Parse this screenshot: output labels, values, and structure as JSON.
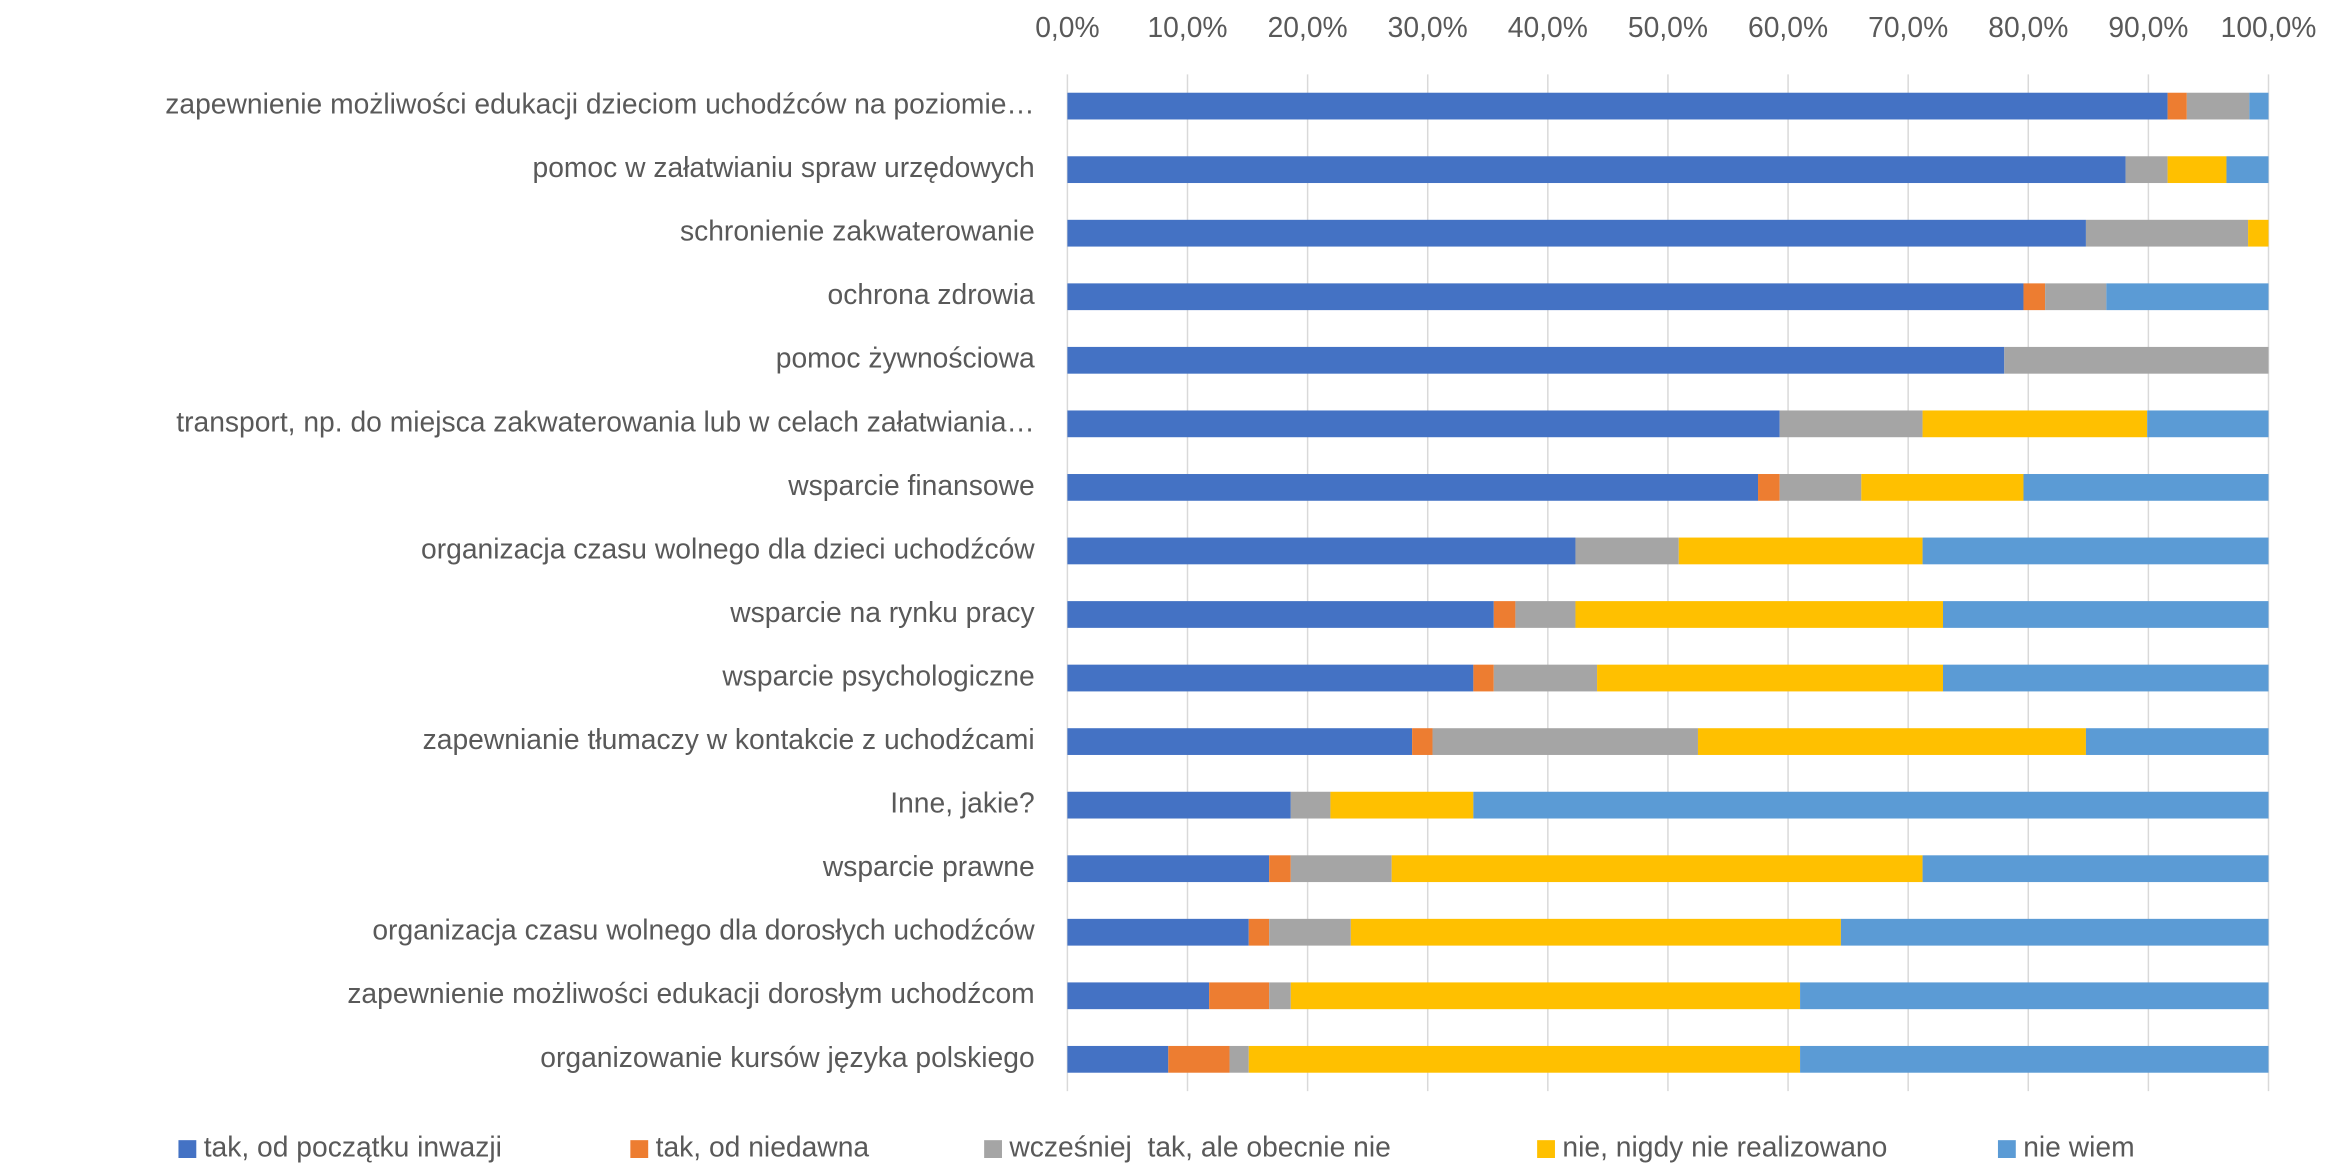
{
  "chart_data": {
    "type": "stacked-bar-horizontal",
    "categories": [
      "zapewnienie możliwości edukacji dzieciom uchodźców na poziomie…",
      "pomoc w załatwianiu spraw urzędowych",
      "schronienie zakwaterowanie",
      "ochrona zdrowia",
      "pomoc żywnościowa",
      "transport, np. do miejsca zakwaterowania lub w celach załatwiania…",
      "wsparcie finansowe",
      "organizacja czasu wolnego dla dzieci uchodźców",
      "wsparcie na rynku pracy",
      "wsparcie psychologiczne",
      "zapewnianie tłumaczy w kontakcie z uchodźcami",
      "Inne, jakie?",
      "wsparcie prawne",
      "organizacja czasu wolnego dla dorosłych uchodźców",
      "zapewnienie możliwości edukacji dorosłym uchodźcom",
      "organizowanie kursów języka polskiego"
    ],
    "series": [
      {
        "name": "tak, od początku inwazji",
        "color": "#4472c4",
        "values": [
          91.6,
          88.1,
          84.8,
          79.6,
          78.0,
          59.3,
          57.5,
          42.3,
          35.5,
          33.8,
          28.7,
          18.6,
          16.8,
          15.1,
          11.8,
          8.4
        ]
      },
      {
        "name": "tak, od niedawna",
        "color": "#ed7d31",
        "values": [
          1.6,
          0,
          0,
          1.8,
          0,
          0,
          1.8,
          0,
          1.8,
          1.7,
          1.7,
          0,
          1.8,
          1.7,
          5.0,
          5.1
        ]
      },
      {
        "name": "wcześniej  tak, ale obecnie nie",
        "color": "#a5a5a5",
        "values": [
          5.2,
          3.5,
          13.5,
          5.1,
          22.0,
          11.9,
          6.8,
          8.6,
          5.0,
          8.6,
          22.1,
          3.3,
          8.4,
          6.8,
          1.8,
          1.6
        ]
      },
      {
        "name": "nie, nigdy nie realizowano",
        "color": "#ffc000",
        "values": [
          0,
          4.9,
          1.7,
          0,
          0,
          18.7,
          13.5,
          20.3,
          30.6,
          28.8,
          32.3,
          11.9,
          44.2,
          40.8,
          42.4,
          45.9
        ]
      },
      {
        "name": "nie wiem",
        "color": "#5b9bd5",
        "values": [
          1.6,
          3.5,
          0,
          13.5,
          0,
          10.1,
          20.4,
          28.8,
          27.1,
          27.1,
          15.2,
          66.2,
          28.8,
          35.6,
          39.0,
          39.0
        ]
      }
    ],
    "xlim": [
      0,
      100
    ],
    "xticks": [
      {
        "value": 0,
        "label": "0,0%"
      },
      {
        "value": 10,
        "label": "10,0%"
      },
      {
        "value": 20,
        "label": "20,0%"
      },
      {
        "value": 30,
        "label": "30,0%"
      },
      {
        "value": 40,
        "label": "40,0%"
      },
      {
        "value": 50,
        "label": "50,0%"
      },
      {
        "value": 60,
        "label": "60,0%"
      },
      {
        "value": 70,
        "label": "70,0%"
      },
      {
        "value": 80,
        "label": "80,0%"
      },
      {
        "value": 90,
        "label": "90,0%"
      },
      {
        "value": 100,
        "label": "100,0%"
      }
    ],
    "grid": true,
    "legend": "bottom"
  }
}
